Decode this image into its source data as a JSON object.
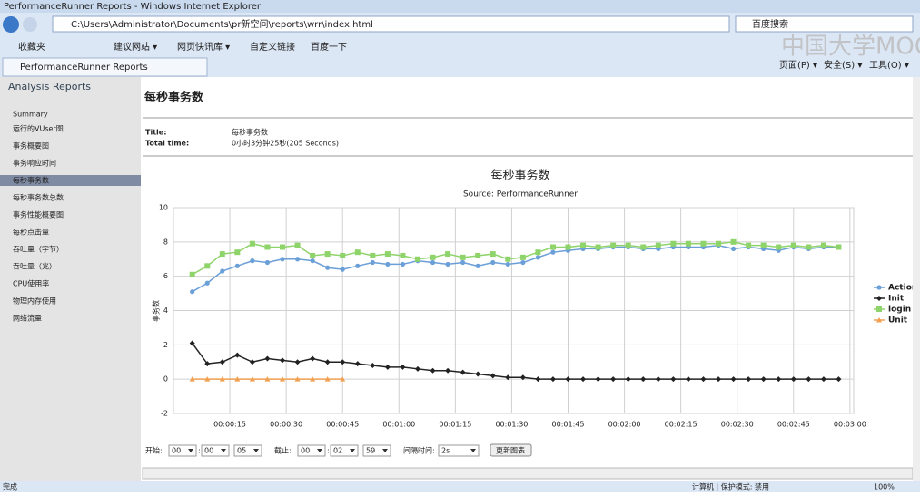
{
  "browser": {
    "title": "PerformanceRunner Reports - Windows Internet Explorer",
    "address": "C:\\Users\\Administrator\\Documents\\pr新空间\\reports\\wrr\\index.html",
    "search": "百度搜索",
    "favorites": [
      "收藏夹",
      "建议网站 ▾",
      "网页快讯库 ▾",
      "自定义链接",
      "百度一下"
    ],
    "tab": "PerformanceRunner Reports",
    "menus": [
      "页面(P) ▾",
      "安全(S) ▾",
      "工具(O) ▾"
    ],
    "status": "完成",
    "zone": "计算机 | 保护模式: 禁用",
    "zoom": "100%",
    "watermark": "中国大学MOOC"
  },
  "sidebar": {
    "title": "Analysis Reports",
    "items": [
      "Summary",
      "运行的VUser图",
      "事务概要图",
      "事务响应时间",
      "每秒事务数",
      "每秒事务数总数",
      "事务性能概要图",
      "每秒点击量",
      "吞吐量（字节）",
      "吞吐量（兆）",
      "CPU使用率",
      "物理内存使用",
      "网络流量"
    ],
    "selected": 4
  },
  "report": {
    "heading": "每秒事务数",
    "fields": [
      {
        "label": "Title:",
        "value": "每秒事务数"
      },
      {
        "label": "Total time:",
        "value": "0小时3分钟25秒(205 Seconds)"
      }
    ]
  },
  "controls": {
    "start_label": "开始:",
    "start": [
      "00",
      "00",
      "05"
    ],
    "end_label": "截止:",
    "end": [
      "00",
      "02",
      "59"
    ],
    "separator": ":",
    "interval_label": "间隔时间:",
    "interval": "2s",
    "button": "更新图表"
  },
  "chart_data": {
    "type": "line",
    "title": "每秒事务数",
    "subtitle": "Source: PerformanceRunner",
    "y_label": "事务数",
    "x": [
      5,
      9,
      13,
      17,
      21,
      25,
      29,
      33,
      37,
      41,
      45,
      49,
      53,
      57,
      61,
      65,
      69,
      73,
      77,
      81,
      85,
      89,
      93,
      97,
      101,
      105,
      109,
      113,
      117,
      121,
      125,
      129,
      133,
      137,
      141,
      145,
      149,
      153,
      157,
      161,
      165,
      169,
      173,
      177
    ],
    "series": [
      {
        "name": "Action",
        "color": "#6a9fd8",
        "marker": "circle",
        "values": [
          5.1,
          5.6,
          6.3,
          6.6,
          6.9,
          6.8,
          7.0,
          7.0,
          6.9,
          6.5,
          6.4,
          6.6,
          6.8,
          6.7,
          6.7,
          6.9,
          6.8,
          6.7,
          6.8,
          6.6,
          6.8,
          6.7,
          6.8,
          7.1,
          7.4,
          7.5,
          7.6,
          7.6,
          7.7,
          7.7,
          7.6,
          7.6,
          7.7,
          7.7,
          7.7,
          7.8,
          7.6,
          7.7,
          7.6,
          7.5,
          7.7,
          7.6,
          7.7,
          7.7
        ]
      },
      {
        "name": "Init",
        "color": "#222222",
        "marker": "diamond",
        "values": [
          2.1,
          0.9,
          1.0,
          1.4,
          1.0,
          1.2,
          1.1,
          1.0,
          1.2,
          1.0,
          1.0,
          0.9,
          0.8,
          0.7,
          0.7,
          0.6,
          0.5,
          0.5,
          0.4,
          0.3,
          0.2,
          0.1,
          0.1,
          0,
          0,
          0,
          0,
          0,
          0,
          0,
          0,
          0,
          0,
          0,
          0,
          0,
          0,
          0,
          0,
          0,
          0,
          0,
          0,
          0
        ]
      },
      {
        "name": "login",
        "color": "#8fd46a",
        "marker": "square",
        "values": [
          6.1,
          6.6,
          7.3,
          7.4,
          7.9,
          7.7,
          7.7,
          7.8,
          7.2,
          7.3,
          7.2,
          7.4,
          7.2,
          7.3,
          7.2,
          7.0,
          7.1,
          7.3,
          7.1,
          7.2,
          7.3,
          7.0,
          7.1,
          7.4,
          7.7,
          7.7,
          7.8,
          7.7,
          7.8,
          7.8,
          7.7,
          7.8,
          7.9,
          7.9,
          7.9,
          7.9,
          8.0,
          7.8,
          7.8,
          7.7,
          7.8,
          7.7,
          7.8,
          7.7
        ]
      },
      {
        "name": "Unit",
        "color": "#f0a050",
        "marker": "triangle",
        "values": [
          0,
          0,
          0,
          0,
          0,
          0,
          0,
          0,
          0,
          0,
          0,
          null,
          null,
          null,
          null,
          null,
          null,
          null,
          null,
          null,
          null,
          null,
          null,
          null,
          null,
          null,
          null,
          null,
          null,
          null,
          null,
          null,
          null,
          null,
          null,
          null,
          null,
          null,
          null,
          null,
          null,
          null,
          null,
          null
        ]
      }
    ],
    "xlim": [
      0,
      181
    ],
    "xticks": [
      {
        "value": 15,
        "label": "00:00:15"
      },
      {
        "value": 30,
        "label": "00:00:30"
      },
      {
        "value": 45,
        "label": "00:00:45"
      },
      {
        "value": 60,
        "label": "00:01:00"
      },
      {
        "value": 75,
        "label": "00:01:15"
      },
      {
        "value": 90,
        "label": "00:01:30"
      },
      {
        "value": 105,
        "label": "00:01:45"
      },
      {
        "value": 120,
        "label": "00:02:00"
      },
      {
        "value": 135,
        "label": "00:02:15"
      },
      {
        "value": 150,
        "label": "00:02:30"
      },
      {
        "value": 165,
        "label": "00:02:45"
      },
      {
        "value": 180,
        "label": "00:03:00"
      }
    ],
    "ylim": [
      -2,
      10
    ],
    "yticks": [
      -2,
      0,
      2,
      4,
      6,
      8,
      10
    ],
    "grid": true
  }
}
